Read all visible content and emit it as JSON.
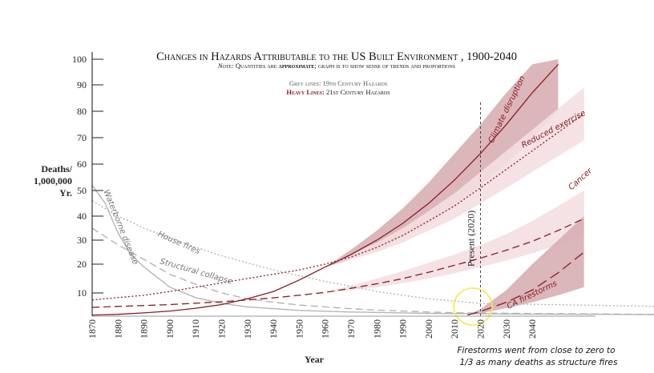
{
  "chart_data": {
    "type": "line",
    "title": "Changes in Hazards Attributable to the US Built Environment , 1900-2040",
    "note_prefix": "Note:",
    "note_rest_1": " Quantities are ",
    "note_bold": "approximate",
    "note_rest_2": "; graph is to show sense of trends and proportions",
    "legend_grey": "Grey lines: 19th Century Hazards",
    "legend_heavy_prefix": "Heavy Lines:",
    "legend_heavy_rest": " 21st Century Hazards",
    "xlabel": "Year",
    "ylabel_lines": [
      "Deaths/",
      "1,000,000",
      "Yr."
    ],
    "xlim": [
      1870,
      2100
    ],
    "x_ticks": [
      1870,
      1880,
      1890,
      1900,
      1910,
      1920,
      1930,
      1940,
      1950,
      1960,
      1970,
      1980,
      1990,
      2000,
      2010,
      2020,
      2030,
      2040
    ],
    "y_ticks": [
      10,
      20,
      30,
      40,
      50,
      60,
      70,
      80,
      90,
      100
    ],
    "present_label": "Present (2020)",
    "present_year": 2020,
    "annotation_lines": [
      "Firestorms went from close to zero to",
      "1/3 as many deaths as structure fires"
    ],
    "colors": {
      "grey": "#b5b5b5",
      "heavy": "#8a1c24",
      "band_dark": "#d7aeb3",
      "band_light": "#f4dfe1",
      "highlight": "#f6e94a"
    },
    "series": [
      {
        "name": "Waterborne disease",
        "group": "grey",
        "style": "solid",
        "x": [
          1870,
          1875,
          1880,
          1885,
          1890,
          1900,
          1910,
          1920,
          1930,
          1950,
          1970,
          2000,
          2020,
          2100
        ],
        "y": [
          52,
          45,
          33,
          24,
          19,
          12,
          8,
          5.5,
          4,
          2.5,
          1.8,
          1.2,
          1,
          0.6
        ]
      },
      {
        "name": "Structural collapse",
        "group": "grey",
        "style": "dashed",
        "x": [
          1870,
          1880,
          1890,
          1900,
          1910,
          1920,
          1930,
          1940,
          1950,
          1960,
          1970,
          1980,
          1990,
          2000,
          2010,
          2020,
          2100
        ],
        "y": [
          35,
          28,
          22,
          16.5,
          13,
          10,
          7.5,
          6,
          4.8,
          4,
          3.2,
          2.6,
          2.2,
          1.8,
          1.5,
          1.3,
          0.7
        ]
      },
      {
        "name": "House fires",
        "group": "grey",
        "style": "dotted",
        "x": [
          1870,
          1880,
          1890,
          1900,
          1910,
          1920,
          1930,
          1940,
          1950,
          1960,
          1970,
          1980,
          1990,
          2000,
          2010,
          2020,
          2100
        ],
        "y": [
          46,
          40,
          35,
          31,
          27,
          23.5,
          20.5,
          18,
          16,
          14,
          12.3,
          10.5,
          9,
          7.5,
          6.5,
          5.5,
          4
        ]
      },
      {
        "name": "Climate disruption",
        "group": "heavy",
        "style": "solid",
        "x": [
          1870,
          1880,
          1890,
          1900,
          1910,
          1920,
          1930,
          1940,
          1950,
          1960,
          1970,
          1980,
          1990,
          2000,
          2010,
          2020,
          2030,
          2040,
          2050
        ],
        "y": [
          0.5,
          0.8,
          1.4,
          2.2,
          3.4,
          5,
          7.5,
          10.5,
          14.5,
          19,
          24,
          30,
          37,
          45,
          54,
          64,
          75,
          87,
          98
        ],
        "band_lower": [
          0.5,
          0.8,
          1.4,
          2.2,
          3.4,
          5,
          7.5,
          10.5,
          14.5,
          19,
          22,
          26,
          31,
          37,
          44,
          52,
          60,
          70,
          80
        ],
        "band_upper": [
          0.5,
          0.8,
          1.4,
          2.2,
          3.4,
          5,
          7.5,
          10.5,
          14.5,
          19,
          26,
          34,
          43,
          53,
          64,
          75,
          87,
          98,
          100
        ]
      },
      {
        "name": "Reduced exercise",
        "group": "heavy",
        "style": "dotted",
        "x": [
          1870,
          1880,
          1890,
          1900,
          1910,
          1920,
          1930,
          1940,
          1950,
          1960,
          1970,
          1980,
          1990,
          2000,
          2010,
          2020,
          2030,
          2040,
          2050,
          2060
        ],
        "y": [
          7,
          8,
          9,
          10.5,
          12,
          13.5,
          15,
          16.5,
          18,
          20,
          23,
          27,
          32,
          38,
          44,
          51,
          58,
          65,
          72,
          79
        ],
        "band_lower": [
          7,
          8,
          9,
          10.5,
          12,
          13.5,
          15,
          16.5,
          18,
          20,
          22,
          25,
          29,
          34,
          39,
          45,
          51,
          57,
          63,
          69
        ],
        "band_upper": [
          7,
          8,
          9,
          10.5,
          12,
          13.5,
          15,
          16.5,
          18,
          20,
          24,
          29,
          35,
          42,
          49,
          57,
          65,
          73,
          81,
          89
        ]
      },
      {
        "name": "Cancer",
        "group": "heavy",
        "style": "dashed",
        "x": [
          1870,
          1880,
          1890,
          1900,
          1910,
          1920,
          1930,
          1940,
          1950,
          1960,
          1970,
          1980,
          1990,
          2000,
          2010,
          2020,
          2030,
          2040,
          2050,
          2060
        ],
        "y": [
          3.8,
          4.2,
          4.6,
          5,
          5.6,
          6.2,
          7,
          7.9,
          9,
          10.2,
          11.6,
          13.2,
          15,
          17.2,
          19.6,
          22.5,
          25.8,
          29.5,
          34,
          39
        ],
        "band_lower": [
          3.8,
          4.2,
          4.6,
          5,
          5.6,
          6.2,
          7,
          7.9,
          9,
          10.2,
          11,
          12,
          13.4,
          15,
          16.8,
          19,
          21.5,
          24.5,
          28,
          32
        ],
        "band_upper": [
          3.8,
          4.2,
          4.6,
          5,
          5.6,
          6.2,
          7,
          7.9,
          9,
          10.2,
          12.5,
          15,
          17.6,
          20.6,
          24,
          28,
          32.5,
          38,
          44,
          50
        ]
      },
      {
        "name": "CA firestorms",
        "group": "heavy",
        "style": "longdash",
        "x": [
          2015,
          2020,
          2030,
          2040,
          2050,
          2060
        ],
        "y": [
          0.5,
          2,
          6,
          11,
          17,
          25
        ],
        "band_lower": [
          0.5,
          1.2,
          3.5,
          6,
          9,
          12
        ],
        "band_upper": [
          0.5,
          3,
          11,
          20,
          30,
          40
        ]
      }
    ]
  }
}
